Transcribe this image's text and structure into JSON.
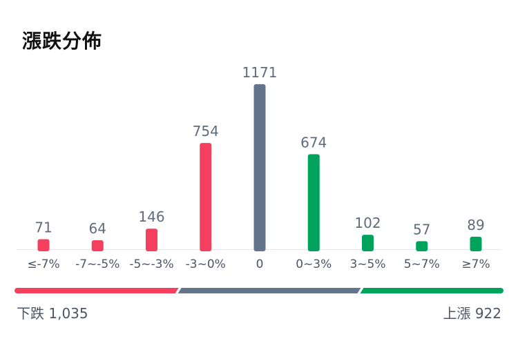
{
  "title": "漲跌分佈",
  "colors": {
    "down": "#f43f5e",
    "flat": "#64748b",
    "up": "#00a35c",
    "value_label": "#5f6b7a",
    "tick_label": "#4b5563",
    "baseline": "#e5e7eb"
  },
  "chart_data": {
    "type": "bar",
    "categories": [
      "≤-7%",
      "-7~-5%",
      "-5~-3%",
      "-3~0%",
      "0",
      "0~3%",
      "3~5%",
      "5~7%",
      "≥7%"
    ],
    "values": [
      71,
      64,
      146,
      754,
      1171,
      674,
      102,
      57,
      89
    ],
    "bar_groups": [
      "down",
      "down",
      "down",
      "down",
      "flat",
      "up",
      "up",
      "up",
      "up"
    ],
    "ylim": [
      0,
      1171
    ]
  },
  "summary": {
    "down_label": "下跌",
    "down_value": "1,035",
    "up_label": "上漲",
    "up_value": "922"
  }
}
